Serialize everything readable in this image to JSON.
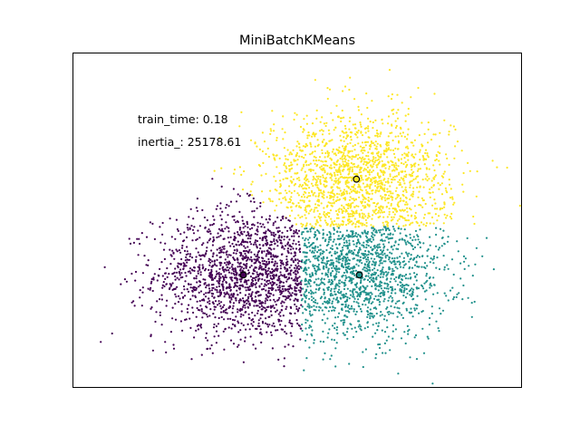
{
  "chart_data": {
    "type": "scatter",
    "title": "MiniBatchKMeans",
    "xlabel": "",
    "ylabel": "",
    "xlim": [
      -3.6,
      4.0
    ],
    "ylim": [
      -4.0,
      3.6
    ],
    "grid": false,
    "legend": "none",
    "axis_ticks": "hidden",
    "annotations": [
      {
        "text": "train_time: 0.18"
      },
      {
        "text": "inertia_: 25178.61"
      }
    ],
    "clusters": [
      {
        "color": "#440154",
        "center": [
          -0.71,
          -1.44
        ],
        "spread": [
          0.75,
          0.72
        ],
        "count": 1600,
        "region": "x < 0.2 and below yellow"
      },
      {
        "color": "#21918c",
        "center": [
          1.25,
          -1.44
        ],
        "spread": [
          0.75,
          0.72
        ],
        "count": 1500,
        "region": "x >= 0.2 and below yellow"
      },
      {
        "color": "#fde725",
        "center": [
          1.2,
          0.73
        ],
        "spread": [
          0.78,
          0.75
        ],
        "count": 1700,
        "region": "upper"
      }
    ],
    "centroids": [
      {
        "x": -0.71,
        "y": -1.44
      },
      {
        "x": 1.25,
        "y": -1.44
      },
      {
        "x": 1.2,
        "y": 0.73
      }
    ]
  },
  "colors": {
    "axes_edge": "#000000",
    "centroid_edge": "#000000"
  }
}
